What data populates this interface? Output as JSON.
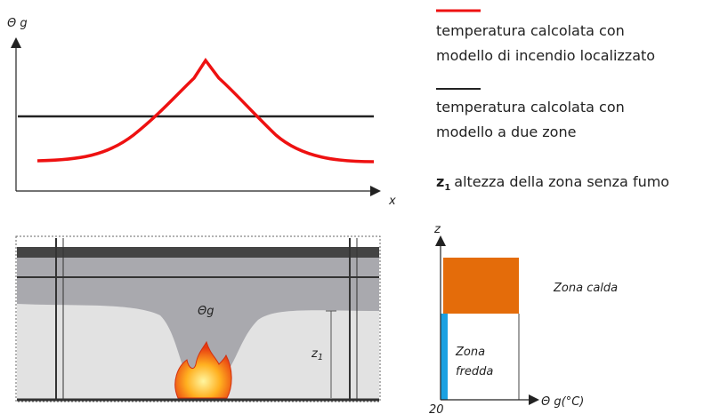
{
  "top_chart": {
    "y_label": "Θ g",
    "x_label": "x"
  },
  "illustration": {
    "theta_label": "Θg",
    "z_label": "z",
    "z_sub": "1"
  },
  "legend": {
    "items": [
      {
        "lines": [
          "temperatura calcolata con",
          "modello di incendio localizzato"
        ]
      },
      {
        "lines": [
          "temperatura calcolata con",
          "modello a due zone"
        ]
      }
    ],
    "note": {
      "symbol": "z",
      "sub": "1",
      "text": "altezza della zona senza fumo"
    }
  },
  "zone_diagram": {
    "y_label": "z",
    "x_label": "Θ g(°C)",
    "x_origin": "20",
    "hot": "Zona calda",
    "cold": [
      "Zona",
      "fredda"
    ]
  }
}
